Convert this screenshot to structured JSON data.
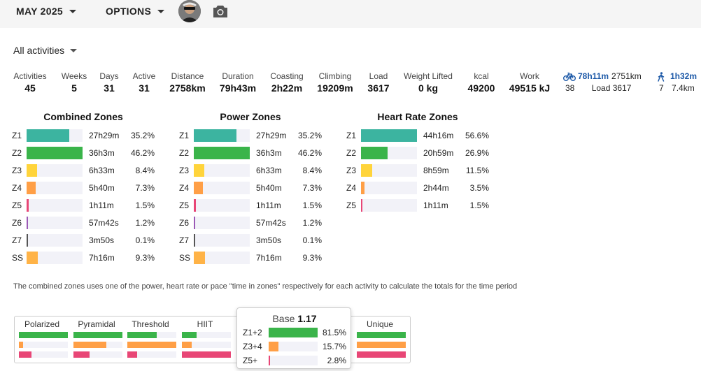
{
  "colors": {
    "z1": "#3cb4a0",
    "z2": "#3ab44a",
    "z3": "#ffd43b",
    "z4": "#ff9f46",
    "z5": "#e84676",
    "z6": "#9b59b6",
    "z7": "#555555",
    "ss": "#ffb347",
    "link": "#1e5aa8"
  },
  "topbar": {
    "month_label": "MAY 2025",
    "options_label": "OPTIONS",
    "avatar_icon": "user-avatar",
    "camera_icon": "camera-icon"
  },
  "filter": {
    "label": "All activities"
  },
  "stats": [
    {
      "label": "Activities",
      "value": "45"
    },
    {
      "label": "Weeks",
      "value": "5"
    },
    {
      "label": "Days",
      "value": "31"
    },
    {
      "label": "Active",
      "value": "31"
    },
    {
      "label": "Distance",
      "value": "2758km"
    },
    {
      "label": "Duration",
      "value": "79h43m"
    },
    {
      "label": "Coasting",
      "value": "2h22m"
    },
    {
      "label": "Climbing",
      "value": "19209m"
    },
    {
      "label": "Load",
      "value": "3617"
    },
    {
      "label": "Weight Lifted",
      "value": "0 kg"
    },
    {
      "label": "kcal",
      "value": "49200"
    },
    {
      "label": "Work",
      "value": "49515 kJ"
    }
  ],
  "sports": [
    {
      "icon": "bike-icon",
      "time": "78h11m",
      "distance": "2751km",
      "count": "38",
      "load": "Load 3617"
    },
    {
      "icon": "walk-icon",
      "time": "1h32m",
      "distance": "7.4km",
      "count": "7"
    }
  ],
  "zone_groups": [
    {
      "title": "Combined Zones",
      "rows": [
        {
          "zone": "Z1",
          "time": "27h29m",
          "pct": "35.2%",
          "frac": 0.762,
          "color": "#3cb4a0"
        },
        {
          "zone": "Z2",
          "time": "36h3m",
          "pct": "46.2%",
          "frac": 1.0,
          "color": "#3ab44a"
        },
        {
          "zone": "Z3",
          "time": "6h33m",
          "pct": "8.4%",
          "frac": 0.182,
          "color": "#ffd43b"
        },
        {
          "zone": "Z4",
          "time": "5h40m",
          "pct": "7.3%",
          "frac": 0.158,
          "color": "#ff9f46"
        },
        {
          "zone": "Z5",
          "time": "1h11m",
          "pct": "1.5%",
          "frac": 0.032,
          "color": "#e84676"
        },
        {
          "zone": "Z6",
          "time": "57m42s",
          "pct": "1.2%",
          "frac": 0.026,
          "color": "#9b59b6"
        },
        {
          "zone": "Z7",
          "time": "3m50s",
          "pct": "0.1%",
          "frac": 0.004,
          "color": "#555555"
        },
        {
          "zone": "SS",
          "time": "7h16m",
          "pct": "9.3%",
          "frac": 0.201,
          "color": "#ffb347"
        }
      ]
    },
    {
      "title": "Power Zones",
      "rows": [
        {
          "zone": "Z1",
          "time": "27h29m",
          "pct": "35.2%",
          "frac": 0.762,
          "color": "#3cb4a0"
        },
        {
          "zone": "Z2",
          "time": "36h3m",
          "pct": "46.2%",
          "frac": 1.0,
          "color": "#3ab44a"
        },
        {
          "zone": "Z3",
          "time": "6h33m",
          "pct": "8.4%",
          "frac": 0.182,
          "color": "#ffd43b"
        },
        {
          "zone": "Z4",
          "time": "5h40m",
          "pct": "7.3%",
          "frac": 0.158,
          "color": "#ff9f46"
        },
        {
          "zone": "Z5",
          "time": "1h11m",
          "pct": "1.5%",
          "frac": 0.032,
          "color": "#e84676"
        },
        {
          "zone": "Z6",
          "time": "57m42s",
          "pct": "1.2%",
          "frac": 0.026,
          "color": "#9b59b6"
        },
        {
          "zone": "Z7",
          "time": "3m50s",
          "pct": "0.1%",
          "frac": 0.004,
          "color": "#555555"
        },
        {
          "zone": "SS",
          "time": "7h16m",
          "pct": "9.3%",
          "frac": 0.201,
          "color": "#ffb347"
        }
      ]
    },
    {
      "title": "Heart Rate Zones",
      "rows": [
        {
          "zone": "Z1",
          "time": "44h16m",
          "pct": "56.6%",
          "frac": 1.0,
          "color": "#3cb4a0"
        },
        {
          "zone": "Z2",
          "time": "20h59m",
          "pct": "26.9%",
          "frac": 0.475,
          "color": "#3ab44a"
        },
        {
          "zone": "Z3",
          "time": "8h59m",
          "pct": "11.5%",
          "frac": 0.203,
          "color": "#ffd43b"
        },
        {
          "zone": "Z4",
          "time": "2h44m",
          "pct": "3.5%",
          "frac": 0.062,
          "color": "#ff9f46"
        },
        {
          "zone": "Z5",
          "time": "1h11m",
          "pct": "1.5%",
          "frac": 0.027,
          "color": "#e84676"
        }
      ]
    }
  ],
  "note": "The combined zones uses one of the power, heart rate or pace \"time in zones\" respectively for each activity to calculate the totals for the time period",
  "distribution": [
    {
      "label": "Polarized",
      "bars": [
        1.0,
        0.08,
        0.25
      ]
    },
    {
      "label": "Pyramidal",
      "bars": [
        1.0,
        0.67,
        0.33
      ]
    },
    {
      "label": "Threshold",
      "bars": [
        0.6,
        1.0,
        0.2
      ]
    },
    {
      "label": "HIIT",
      "bars": [
        0.3,
        0.2,
        1.0
      ]
    },
    {
      "label": "",
      "bars": []
    },
    {
      "label": "",
      "bars": []
    },
    {
      "label": "Unique",
      "bars": [
        1.0,
        1.0,
        1.0
      ]
    }
  ],
  "tooltip": {
    "title": "Base",
    "value": "1.17",
    "rows": [
      {
        "label": "Z1+2",
        "pct": "81.5%",
        "frac": 1.0,
        "color": "#3ab44a"
      },
      {
        "label": "Z3+4",
        "pct": "15.7%",
        "frac": 0.193,
        "color": "#ff9f46"
      },
      {
        "label": "Z5+",
        "pct": "2.8%",
        "frac": 0.034,
        "color": "#e84676"
      }
    ]
  }
}
